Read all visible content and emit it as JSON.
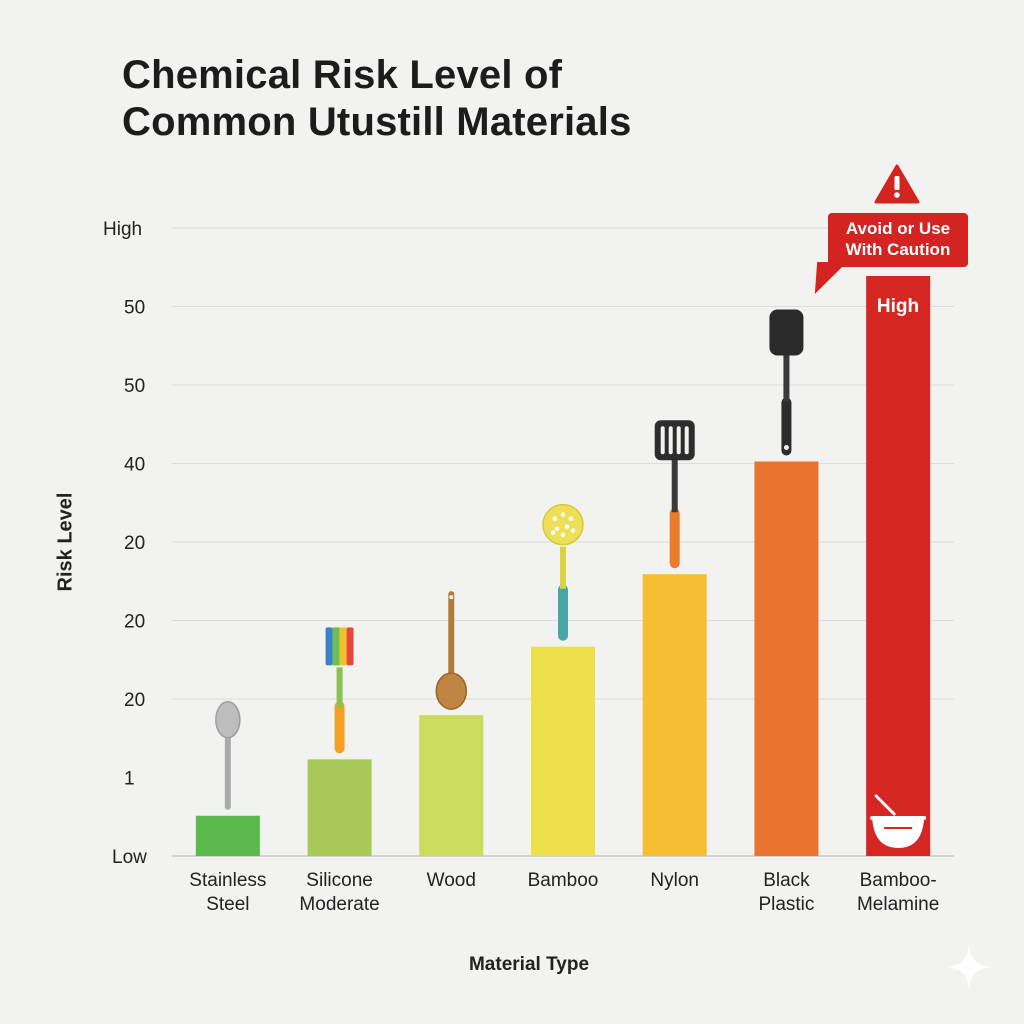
{
  "chart_data": {
    "type": "bar",
    "title": [
      "Chemical Risk Level of",
      "Common Utustill Materials"
    ],
    "xlabel": "Material Type",
    "ylabel": "Risk Level",
    "y_tick_labels": [
      "Low",
      "1",
      "20",
      "20",
      "20",
      "40",
      "50",
      "50",
      "High"
    ],
    "categories": [
      [
        "Stainless",
        "Steel"
      ],
      [
        "Silicone",
        "Moderate"
      ],
      [
        "Wood"
      ],
      [
        "Bamboo"
      ],
      [
        "Nylon"
      ],
      [
        "Black",
        "Plastic"
      ],
      [
        "Bamboo-",
        "Melamine"
      ]
    ],
    "values": [
      0.5,
      1.2,
      1.75,
      2.6,
      3.5,
      4.9,
      7.2
    ],
    "ylim": [
      0,
      7.8
    ],
    "grid": true,
    "colors": [
      "#5bb84a",
      "#a8c957",
      "#cadb5e",
      "#ede04b",
      "#f6be33",
      "#e8742f",
      "#d42623"
    ],
    "utensils": [
      "spoon",
      "silicone-spatula",
      "wooden-spoon",
      "slotted-spoon",
      "slotted-turner",
      "black-spatula",
      "bowl"
    ],
    "annotation": {
      "callout_lines": [
        "Avoid or Use",
        "With Caution"
      ],
      "bar_label": "High",
      "callout_color": "#d32421",
      "icon": "warning-triangle-icon"
    }
  }
}
